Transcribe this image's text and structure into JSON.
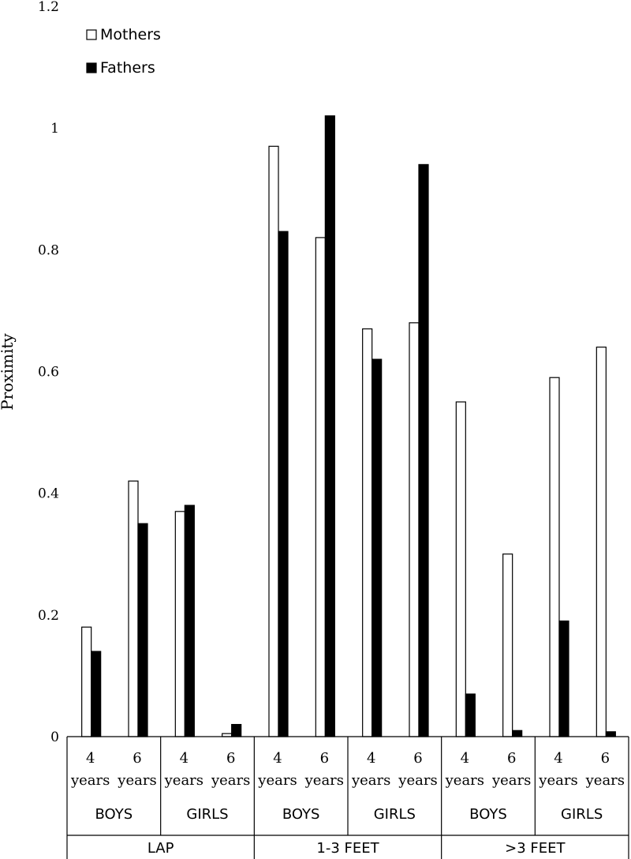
{
  "chart_data": {
    "type": "bar",
    "ylabel": "Proximity",
    "ylim": [
      0,
      1.2
    ],
    "yticks": [
      "0",
      "0.2",
      "0.4",
      "0.6",
      "0.8",
      "1",
      "1.2"
    ],
    "ytick_values": [
      0,
      0.2,
      0.4,
      0.6,
      0.8,
      1.0,
      1.2
    ],
    "grid": false,
    "legend_position": "top-left",
    "categories": [
      {
        "age_num": "4",
        "age_unit": "years",
        "gender": "BOYS",
        "proximity": "LAP"
      },
      {
        "age_num": "6",
        "age_unit": "years",
        "gender": "BOYS",
        "proximity": "LAP"
      },
      {
        "age_num": "4",
        "age_unit": "years",
        "gender": "GIRLS",
        "proximity": "LAP"
      },
      {
        "age_num": "6",
        "age_unit": "years",
        "gender": "GIRLS",
        "proximity": "LAP"
      },
      {
        "age_num": "4",
        "age_unit": "years",
        "gender": "BOYS",
        "proximity": "1-3 FEET"
      },
      {
        "age_num": "6",
        "age_unit": "years",
        "gender": "BOYS",
        "proximity": "1-3 FEET"
      },
      {
        "age_num": "4",
        "age_unit": "years",
        "gender": "GIRLS",
        "proximity": "1-3 FEET"
      },
      {
        "age_num": "6",
        "age_unit": "years",
        "gender": "GIRLS",
        "proximity": "1-3 FEET"
      },
      {
        "age_num": "4",
        "age_unit": "years",
        "gender": "BOYS",
        "proximity": ">3 FEET"
      },
      {
        "age_num": "6",
        "age_unit": "years",
        "gender": "BOYS",
        "proximity": ">3 FEET"
      },
      {
        "age_num": "4",
        "age_unit": "years",
        "gender": "GIRLS",
        "proximity": ">3 FEET"
      },
      {
        "age_num": "6",
        "age_unit": "years",
        "gender": "GIRLS",
        "proximity": ">3 FEET"
      }
    ],
    "gender_groups": [
      "BOYS",
      "GIRLS",
      "BOYS",
      "GIRLS",
      "BOYS",
      "GIRLS"
    ],
    "proximity_groups": [
      "LAP",
      "1-3 FEET",
      ">3 FEET"
    ],
    "series": [
      {
        "name": "Mothers",
        "color": "#ffffff",
        "stroke": "#000000",
        "values": [
          0.18,
          0.42,
          0.37,
          0.005,
          0.97,
          0.82,
          0.67,
          0.68,
          0.55,
          0.3,
          0.59,
          0.64
        ]
      },
      {
        "name": "Fathers",
        "color": "#000000",
        "stroke": "#000000",
        "values": [
          0.14,
          0.35,
          0.38,
          0.02,
          0.83,
          1.02,
          0.62,
          0.94,
          0.07,
          0.01,
          0.19,
          0.008
        ]
      }
    ]
  }
}
